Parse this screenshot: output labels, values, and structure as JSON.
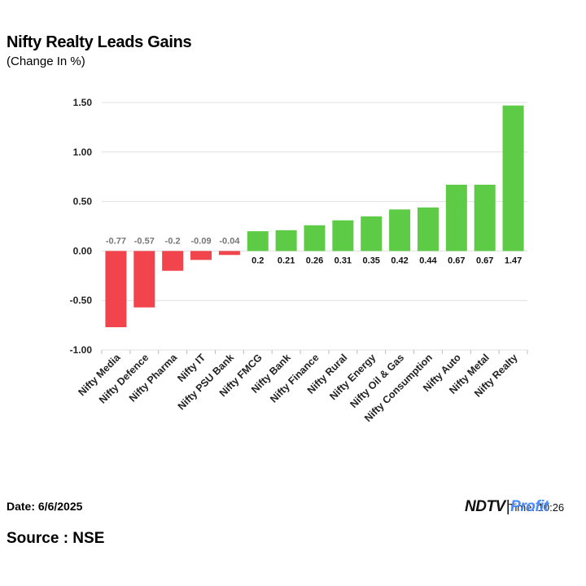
{
  "chart_data": {
    "type": "bar",
    "title": "Nifty Realty Leads Gains",
    "subtitle": "(Change In %)",
    "categories": [
      "Nifty Media",
      "Nifty Defence",
      "Nifty Pharma",
      "Nifty IT",
      "Nifty PSU Bank",
      "Nifty FMCG",
      "Nifty Bank",
      "Nifty Finance",
      "Nifty Rural",
      "Nifty Energy",
      "Nifty Oil & Gas",
      "Nifty Consumption",
      "Nifty Auto",
      "Nifty Metal",
      "Nifty Realty"
    ],
    "values": [
      -0.77,
      -0.57,
      -0.2,
      -0.09,
      -0.04,
      0.2,
      0.21,
      0.26,
      0.31,
      0.35,
      0.42,
      0.44,
      0.67,
      0.67,
      1.47
    ],
    "value_labels": [
      "-0.77",
      "-0.57",
      "-0.2",
      "-0.09",
      "-0.04",
      "0.2",
      "0.21",
      "0.26",
      "0.31",
      "0.35",
      "0.42",
      "0.44",
      "0.67",
      "0.67",
      "1.47"
    ],
    "ylim": [
      -1.0,
      1.5
    ],
    "yticks": [
      "1.50",
      "1.00",
      "0.50",
      "0.00",
      "-0.50",
      "-1.00"
    ],
    "ytick_values": [
      1.5,
      1.0,
      0.5,
      0.0,
      -0.5,
      -1.0
    ],
    "grid": true,
    "colors": {
      "positive": "#5dcb45",
      "negative": "#f2444d"
    }
  },
  "footer": {
    "date": "Date: 6/6/2025",
    "source": "Source : NSE",
    "time": "Time: 10:26",
    "logo_ndtv": "NDTV",
    "logo_sep": "|",
    "logo_profit": "Profit"
  }
}
